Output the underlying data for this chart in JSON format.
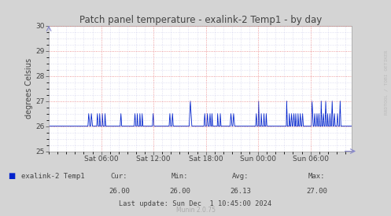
{
  "title": "Patch panel temperature - exalink-2 Temp1 - by day",
  "ylabel": "degrees Celsius",
  "ylim": [
    25,
    30
  ],
  "yticks": [
    25,
    26,
    27,
    28,
    29,
    30
  ],
  "bg_color": "#d4d4d4",
  "plot_bg_color": "#ffffff",
  "line_color": "#0022cc",
  "grid_color_red": "#e87070",
  "grid_color_blue": "#aaaadd",
  "x_tick_hours": [
    6,
    12,
    18,
    24,
    30
  ],
  "x_labels": [
    "Sat 06:00",
    "Sat 12:00",
    "Sat 18:00",
    "Sun 00:00",
    "Sun 06:00"
  ],
  "xlim": [
    0,
    34.75
  ],
  "legend_label": "exalink-2 Temp1",
  "legend_color": "#0022cc",
  "cur": "26.00",
  "min_val": "26.00",
  "avg": "26.13",
  "max_val": "27.00",
  "last_update": "Last update: Sun Dec  1 10:45:00 2024",
  "munin_version": "Munin 2.0.75",
  "watermark": "RRDTOOL / TOBI OETIKER",
  "base_temp": 26.0
}
